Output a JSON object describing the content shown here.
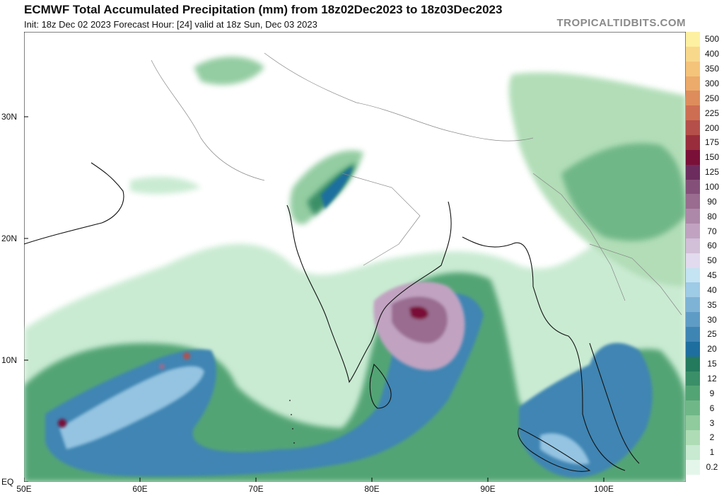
{
  "header": {
    "title": "ECMWF Total Accumulated Precipitation (mm) from 18z02Dec2023 to 18z03Dec2023",
    "subtitle": "Init: 18z Dec 02 2023   Forecast Hour: [24]   valid at 18z Sun, Dec 03 2023",
    "site": "TROPICALTIDBITS.COM"
  },
  "axes": {
    "lat_labels": [
      "30N",
      "20N",
      "10N",
      "EQ"
    ],
    "lon_labels": [
      "50E",
      "60E",
      "70E",
      "80E",
      "90E",
      "100E"
    ]
  },
  "legend": {
    "values": [
      "500",
      "400",
      "350",
      "300",
      "250",
      "225",
      "200",
      "175",
      "150",
      "125",
      "100",
      "90",
      "80",
      "70",
      "60",
      "50",
      "45",
      "40",
      "35",
      "30",
      "25",
      "20",
      "15",
      "12",
      "9",
      "6",
      "3",
      "2",
      "1",
      "0.2"
    ],
    "colors": [
      "#fdf0a0",
      "#f8d98c",
      "#f4c47a",
      "#ecab6a",
      "#de8c5c",
      "#cd6e52",
      "#b54f4a",
      "#9a2d3c",
      "#7a1038",
      "#6c2d5e",
      "#845079",
      "#996c90",
      "#ad88a8",
      "#c1a3c1",
      "#d2bfd8",
      "#e2daee",
      "#c4e3f3",
      "#9ecbe6",
      "#7eb3d6",
      "#5f9cc5",
      "#3f85b3",
      "#1e6f9f",
      "#237a5c",
      "#3a8f68",
      "#53a474",
      "#70b787",
      "#8fcb9d",
      "#aedcb4",
      "#c7ead0",
      "#e4f6ea"
    ]
  }
}
